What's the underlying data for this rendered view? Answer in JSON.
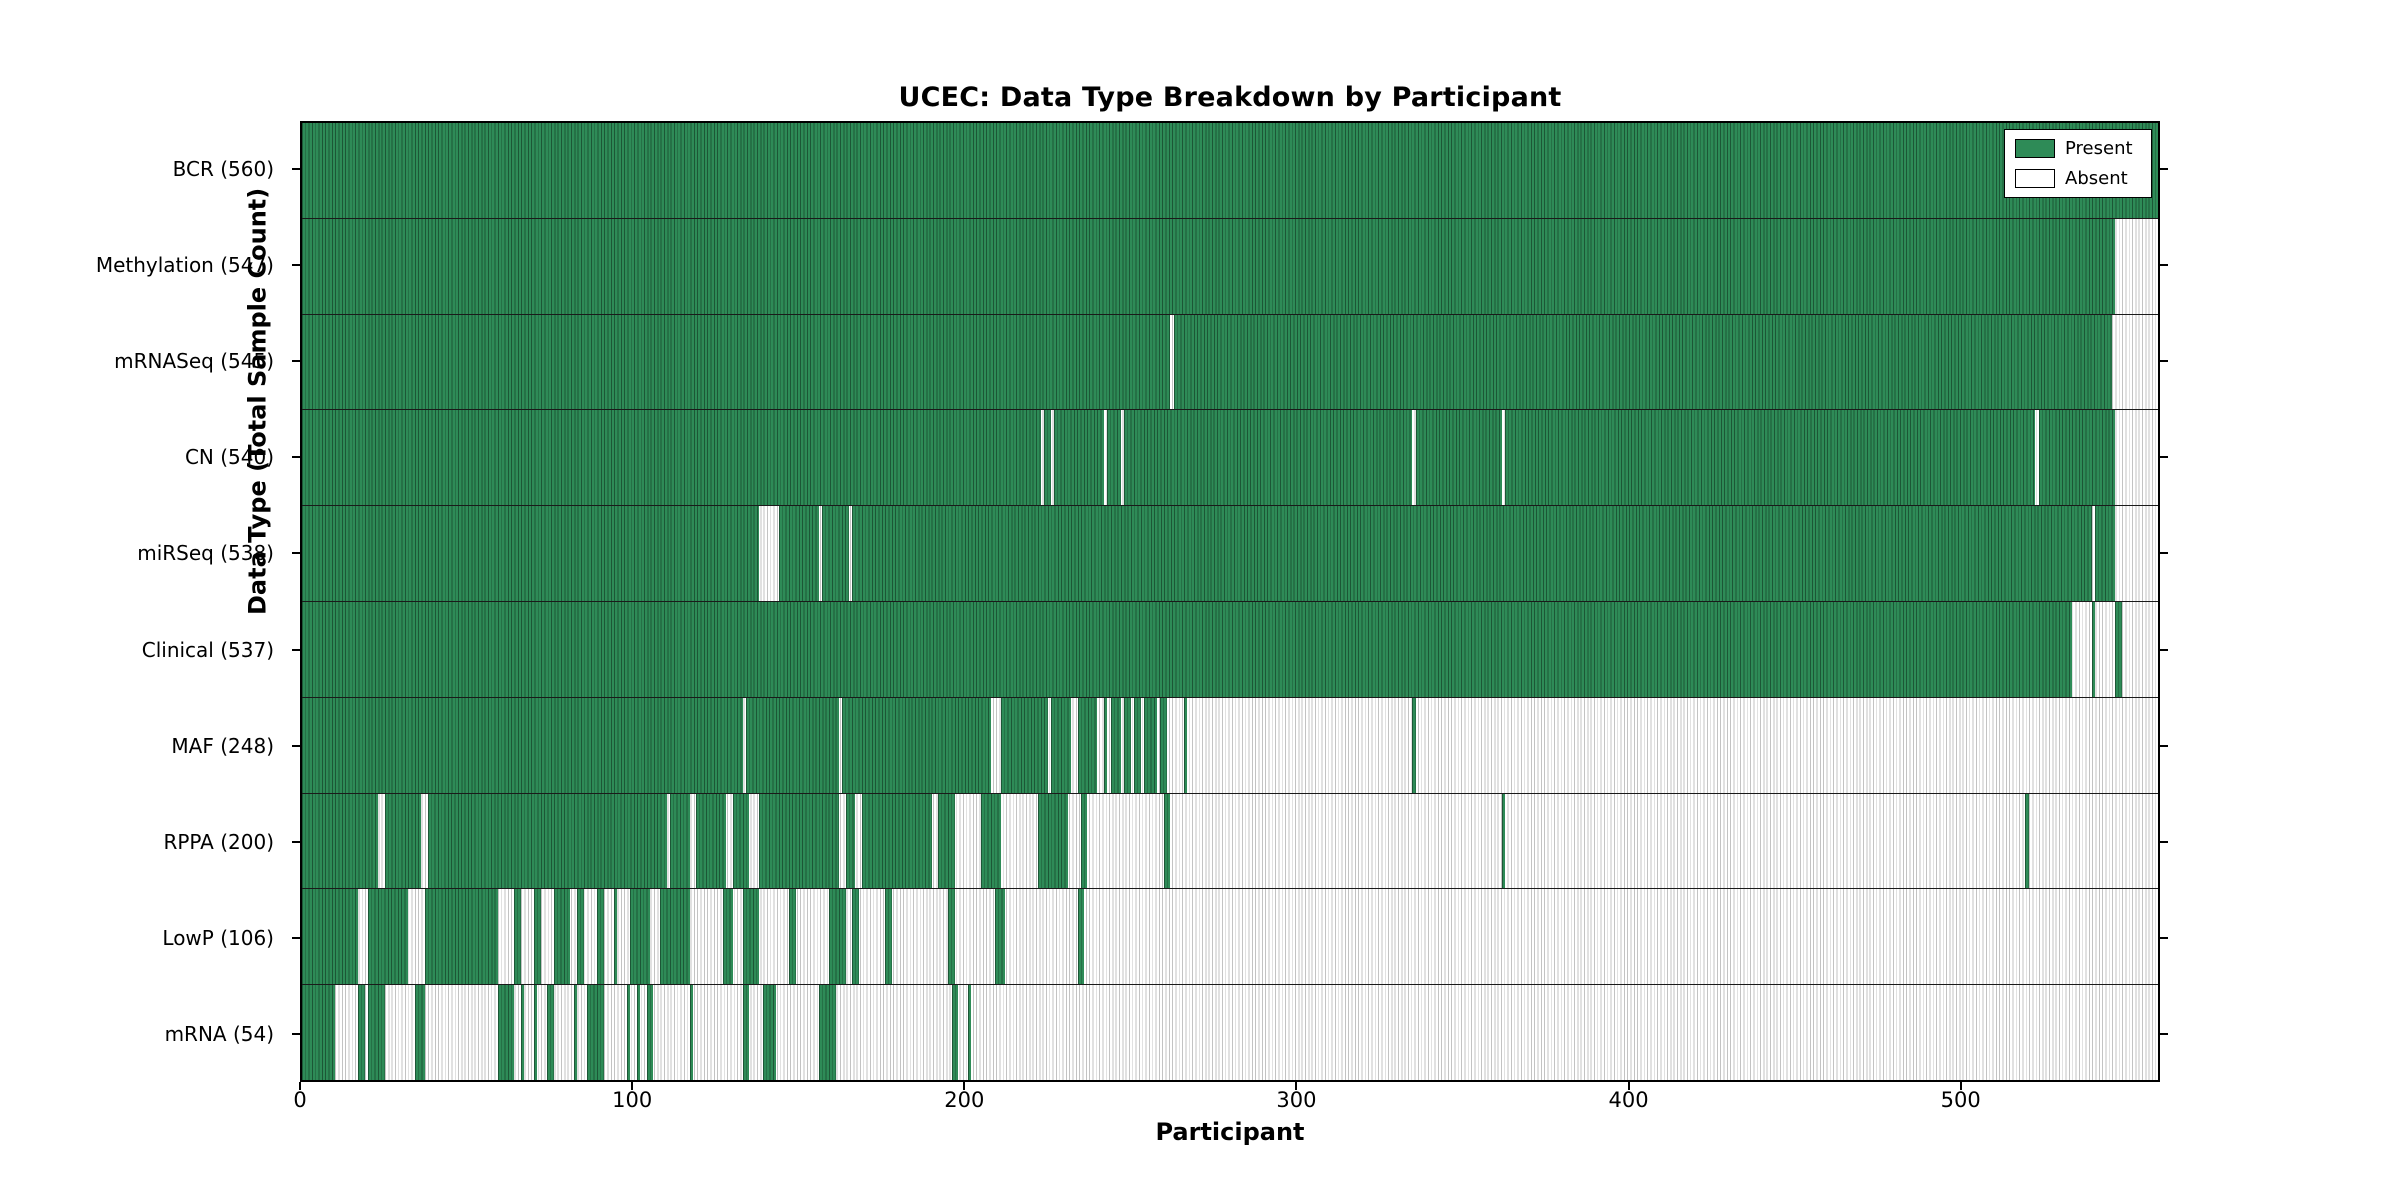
{
  "title": "UCEC: Data Type Breakdown by Participant",
  "axes": {
    "xlabel": "Participant",
    "ylabel": "Data Type (Total Sample Count)"
  },
  "legend": {
    "present_label": "Present",
    "absent_label": "Absent"
  },
  "colors": {
    "present": "#2e8b57",
    "present_edge": "#1c5736",
    "absent": "#ffffff",
    "absent_edge": "#c3c3c3",
    "border": "#000000"
  },
  "chart_data": {
    "type": "heatmap",
    "title": "UCEC: Data Type Breakdown by Participant",
    "xlabel": "Participant",
    "ylabel": "Data Type (Total Sample Count)",
    "legend_entries": [
      "Present",
      "Absent"
    ],
    "legend_position": "upper right",
    "x_max": 560,
    "x_ticks": [
      0,
      100,
      200,
      300,
      400,
      500
    ],
    "grid": false,
    "rows": [
      {
        "label": "BCR (560)",
        "data_type": "BCR",
        "count": 560,
        "present_segments": [
          [
            0,
            560
          ]
        ]
      },
      {
        "label": "Methylation (547)",
        "data_type": "Methylation",
        "count": 547,
        "present_segments": [
          [
            0,
            547
          ]
        ]
      },
      {
        "label": "mRNASeq (545)",
        "data_type": "mRNASeq",
        "count": 545,
        "present_segments": [
          [
            0,
            262
          ],
          [
            263,
            546
          ]
        ]
      },
      {
        "label": "CN (540)",
        "data_type": "CN",
        "count": 540,
        "present_segments": [
          [
            0,
            223
          ],
          [
            224,
            226
          ],
          [
            227,
            242
          ],
          [
            243,
            247
          ],
          [
            248,
            335
          ],
          [
            336,
            362
          ],
          [
            363,
            523
          ],
          [
            524,
            547
          ]
        ]
      },
      {
        "label": "miRSeq (538)",
        "data_type": "miRSeq",
        "count": 538,
        "present_segments": [
          [
            0,
            138
          ],
          [
            144,
            156
          ],
          [
            157,
            165
          ],
          [
            166,
            540
          ],
          [
            541,
            547
          ]
        ]
      },
      {
        "label": "Clinical (537)",
        "data_type": "Clinical",
        "count": 537,
        "present_segments": [
          [
            0,
            534
          ],
          [
            540,
            541
          ],
          [
            547,
            549
          ]
        ]
      },
      {
        "label": "MAF (248)",
        "data_type": "MAF",
        "count": 248,
        "present_segments": [
          [
            0,
            133
          ],
          [
            134,
            162
          ],
          [
            163,
            208
          ],
          [
            211,
            225
          ],
          [
            226,
            232
          ],
          [
            234,
            240
          ],
          [
            242,
            243
          ],
          [
            244,
            247
          ],
          [
            248,
            250
          ],
          [
            251,
            253
          ],
          [
            254,
            258
          ],
          [
            259,
            261
          ],
          [
            266,
            267
          ],
          [
            335,
            336
          ]
        ]
      },
      {
        "label": "RPPA (200)",
        "data_type": "RPPA",
        "count": 200,
        "present_segments": [
          [
            0,
            23
          ],
          [
            25,
            36
          ],
          [
            38,
            110
          ],
          [
            111,
            117
          ],
          [
            119,
            128
          ],
          [
            130,
            135
          ],
          [
            138,
            162
          ],
          [
            164,
            167
          ],
          [
            169,
            190
          ],
          [
            192,
            197
          ],
          [
            205,
            211
          ],
          [
            222,
            231
          ],
          [
            235,
            237
          ],
          [
            260,
            262
          ],
          [
            362,
            363
          ],
          [
            520,
            521
          ]
        ]
      },
      {
        "label": "LowP (106)",
        "data_type": "LowP",
        "count": 106,
        "present_segments": [
          [
            0,
            17
          ],
          [
            20,
            32
          ],
          [
            37,
            59
          ],
          [
            64,
            66
          ],
          [
            70,
            72
          ],
          [
            76,
            81
          ],
          [
            83,
            85
          ],
          [
            89,
            91
          ],
          [
            94,
            95
          ],
          [
            99,
            105
          ],
          [
            108,
            117
          ],
          [
            127,
            130
          ],
          [
            133,
            138
          ],
          [
            147,
            149
          ],
          [
            159,
            164
          ],
          [
            166,
            168
          ],
          [
            176,
            178
          ],
          [
            195,
            197
          ],
          [
            209,
            212
          ],
          [
            234,
            236
          ]
        ]
      },
      {
        "label": "mRNA (54)",
        "data_type": "mRNA",
        "count": 54,
        "present_segments": [
          [
            0,
            10
          ],
          [
            17,
            19
          ],
          [
            20,
            25
          ],
          [
            34,
            37
          ],
          [
            59,
            64
          ],
          [
            66,
            67
          ],
          [
            70,
            71
          ],
          [
            74,
            76
          ],
          [
            82,
            83
          ],
          [
            86,
            91
          ],
          [
            98,
            99
          ],
          [
            101,
            102
          ],
          [
            104,
            106
          ],
          [
            117,
            118
          ],
          [
            133,
            135
          ],
          [
            139,
            143
          ],
          [
            156,
            161
          ],
          [
            196,
            198
          ],
          [
            201,
            202
          ]
        ]
      }
    ]
  }
}
